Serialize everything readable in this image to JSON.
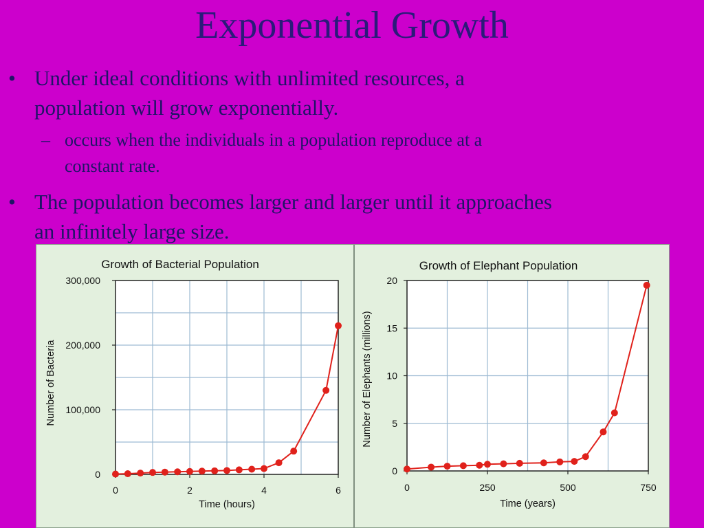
{
  "slide": {
    "title": "Exponential Growth",
    "bullets": [
      {
        "marker": "•",
        "lines": [
          "Under ideal conditions with unlimited resources, a",
          "population will grow exponentially."
        ]
      },
      {
        "marker": "•",
        "lines": [
          "The population becomes larger and larger until it approaches",
          "an infinitely large size."
        ]
      }
    ],
    "sub_bullet": {
      "marker": "–",
      "lines": [
        "occurs when the individuals in a population reproduce at a",
        "constant rate."
      ]
    }
  },
  "colors": {
    "background": "#cc00cc",
    "text": "#1f1466",
    "panel": "#e3f0de",
    "gridline": "#9dbad3",
    "curve": "#e0211b",
    "point": "#e0211b"
  },
  "chart_data": [
    {
      "type": "scatter",
      "title": "Growth of Bacterial Population",
      "xlabel": "Time (hours)",
      "ylabel": "Number of Bacteria",
      "xlim": [
        0,
        6
      ],
      "ylim": [
        0,
        300000
      ],
      "xticks": [
        0,
        2,
        4,
        6
      ],
      "xtick_labels": [
        "0",
        "2",
        "4",
        "6"
      ],
      "yticks": [
        0,
        100000,
        200000,
        300000
      ],
      "ytick_labels": [
        "0",
        "100,000",
        "200,000",
        "300,000"
      ],
      "grid": true,
      "x": [
        0,
        0.33,
        0.67,
        1.0,
        1.33,
        1.67,
        2.0,
        2.33,
        2.67,
        3.0,
        3.33,
        3.67,
        4.0,
        4.4,
        4.8,
        5.67,
        6.0
      ],
      "y": [
        500,
        1000,
        2000,
        3000,
        3500,
        4000,
        4500,
        5000,
        5500,
        6000,
        7000,
        8000,
        9000,
        18000,
        36000,
        130000,
        230000
      ]
    },
    {
      "type": "scatter",
      "title": "Growth of Elephant Population",
      "xlabel": "Time (years)",
      "ylabel": "Number of Elephants (millions)",
      "xlim": [
        0,
        750
      ],
      "ylim": [
        0,
        20
      ],
      "xticks": [
        0,
        250,
        500,
        750
      ],
      "xtick_labels": [
        "0",
        "250",
        "500",
        "750"
      ],
      "yticks": [
        0,
        5,
        10,
        15,
        20
      ],
      "ytick_labels": [
        "0",
        "5",
        "10",
        "15",
        "20"
      ],
      "grid": true,
      "x": [
        0,
        75,
        125,
        175,
        225,
        250,
        300,
        350,
        425,
        475,
        520,
        555,
        610,
        645,
        745
      ],
      "y": [
        0.2,
        0.4,
        0.5,
        0.55,
        0.6,
        0.7,
        0.75,
        0.8,
        0.85,
        0.95,
        1.0,
        1.5,
        4.1,
        6.1,
        19.5
      ]
    }
  ]
}
